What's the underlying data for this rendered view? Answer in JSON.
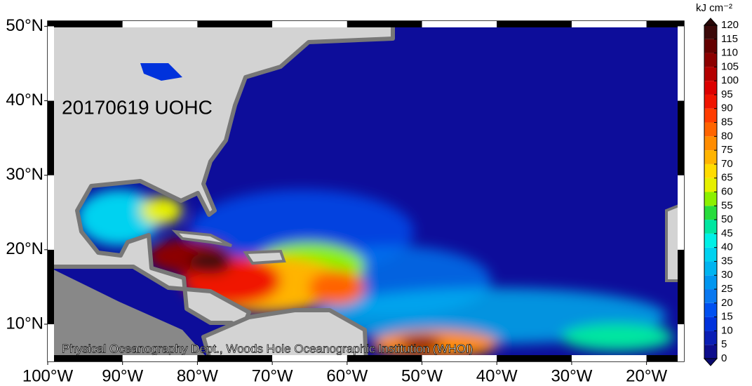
{
  "map": {
    "title": "20170619 UOHC",
    "credit": "Physical Oceanography Dept., Woods Hole Oceanographic Institution (WHOI)",
    "xlim": [
      -100,
      -15
    ],
    "ylim": [
      5,
      50.7
    ],
    "xticks": [
      {
        "value": -100,
        "label": "100°W"
      },
      {
        "value": -90,
        "label": "90°W"
      },
      {
        "value": -80,
        "label": "80°W"
      },
      {
        "value": -70,
        "label": "70°W"
      },
      {
        "value": -60,
        "label": "60°W"
      },
      {
        "value": -50,
        "label": "50°W"
      },
      {
        "value": -40,
        "label": "40°W"
      },
      {
        "value": -30,
        "label": "30°W"
      },
      {
        "value": -20,
        "label": "20°W"
      }
    ],
    "yticks": [
      {
        "value": 10,
        "label": "10°N"
      },
      {
        "value": 20,
        "label": "20°N"
      },
      {
        "value": 30,
        "label": "30°N"
      },
      {
        "value": 40,
        "label": "40°N"
      },
      {
        "value": 50,
        "label": "50°N"
      }
    ],
    "colorbar": {
      "label": "kJ cm⁻²",
      "ticks": [
        0,
        5,
        10,
        15,
        20,
        25,
        30,
        35,
        40,
        45,
        50,
        55,
        60,
        65,
        70,
        75,
        80,
        85,
        90,
        95,
        100,
        105,
        110,
        115,
        120
      ],
      "colors": [
        "#0d0d8c",
        "#0a1eb4",
        "#0032dc",
        "#0050f0",
        "#0a78f0",
        "#0096f0",
        "#00b4f0",
        "#00d2f0",
        "#00f0e6",
        "#00e6a0",
        "#28dc3c",
        "#8cf000",
        "#e6f000",
        "#ffdc00",
        "#ffb400",
        "#ff8c00",
        "#ff6400",
        "#ff3c00",
        "#f01400",
        "#dc0000",
        "#b40000",
        "#8c0000",
        "#640000",
        "#3c0a0a"
      ],
      "under_color": "#0a0a6e",
      "over_color": "#2a0808"
    }
  }
}
